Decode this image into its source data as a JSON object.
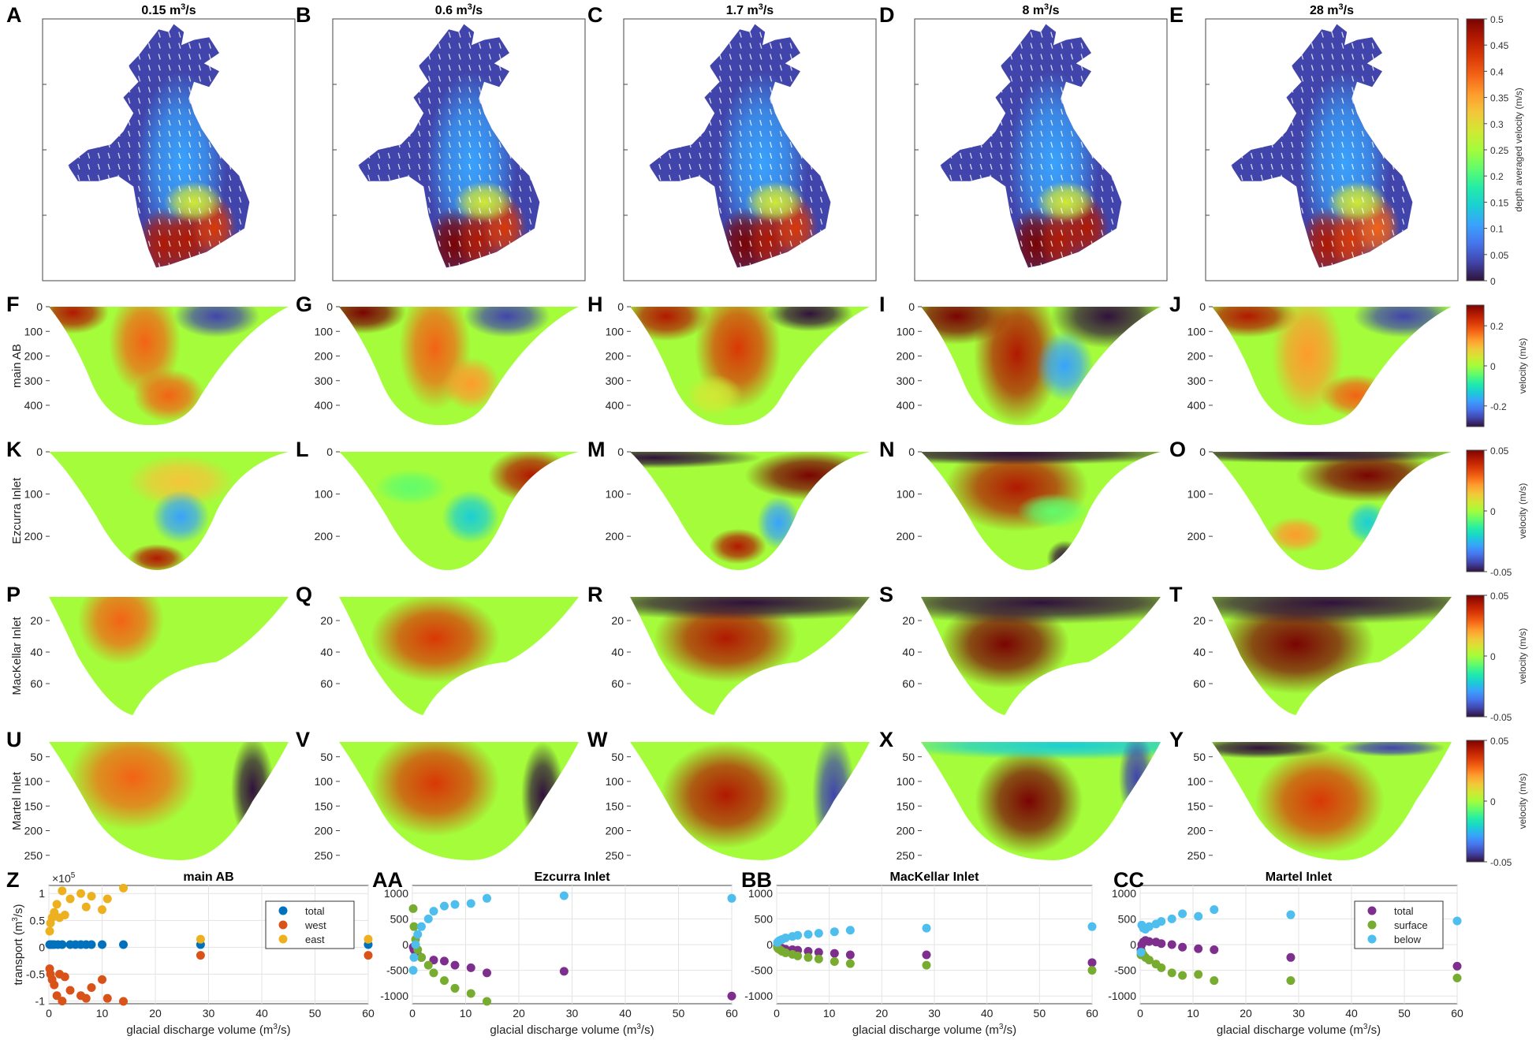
{
  "palette": {
    "jet": [
      "#30123b",
      "#4145ab",
      "#4675ed",
      "#39a2fc",
      "#1bcfd4",
      "#24eca6",
      "#61fc6c",
      "#a4fc3b",
      "#d1e834",
      "#f3c63a",
      "#fe9b2d",
      "#f36315",
      "#d93806",
      "#b11901",
      "#7a0403"
    ],
    "total_blue": "#0072bd",
    "west_red": "#d95319",
    "east_yellow": "#edb120",
    "total_purple": "#7e2f8e",
    "surface_green": "#77ac30",
    "below_cyan": "#4dbeee"
  },
  "discharge_headers": [
    {
      "value": "0.15",
      "unit": " m",
      "sup": "3",
      "tail": "/s"
    },
    {
      "value": "0.6",
      "unit": " m",
      "sup": "3",
      "tail": "/s"
    },
    {
      "value": "1.7",
      "unit": " m",
      "sup": "3",
      "tail": "/s"
    },
    {
      "value": "8",
      "unit": " m",
      "sup": "3",
      "tail": "/s"
    },
    {
      "value": "28",
      "unit": " m",
      "sup": "3",
      "tail": "/s"
    }
  ],
  "panel_letters": [
    [
      "A",
      "B",
      "C",
      "D",
      "E"
    ],
    [
      "F",
      "G",
      "H",
      "I",
      "J"
    ],
    [
      "K",
      "L",
      "M",
      "N",
      "O"
    ],
    [
      "P",
      "Q",
      "R",
      "S",
      "T"
    ],
    [
      "U",
      "V",
      "W",
      "X",
      "Y"
    ]
  ],
  "maps_row": {
    "colorbar": {
      "label": "depth averaged velocity (m/s)",
      "ticks": [
        "0.5",
        "0.45",
        "0.4",
        "0.35",
        "0.3",
        "0.25",
        "0.2",
        "0.15",
        "0.1",
        "0.05",
        "0"
      ]
    }
  },
  "section_rows": [
    {
      "name": "main AB",
      "depth_ticks": [
        "0",
        "100",
        "200",
        "300",
        "400"
      ],
      "depth_range": [
        0,
        480
      ],
      "colorbar": {
        "label": "velocity (m/s)",
        "ticks": [
          "0.2",
          "0",
          "-0.2"
        ],
        "range": [
          -0.3,
          0.3
        ]
      }
    },
    {
      "name": "Ezcurra Inlet",
      "depth_ticks": [
        "0",
        "100",
        "200"
      ],
      "depth_range": [
        0,
        280
      ],
      "colorbar": {
        "label": "velocity (m/s)",
        "ticks": [
          "0.05",
          "0",
          "-0.05"
        ],
        "range": [
          -0.05,
          0.05
        ]
      }
    },
    {
      "name": "MacKellar Inlet",
      "depth_ticks": [
        "20",
        "40",
        "60"
      ],
      "depth_range": [
        5,
        80
      ],
      "colorbar": {
        "label": "velocity (m/s)",
        "ticks": [
          "0.05",
          "0",
          "-0.05"
        ],
        "range": [
          -0.05,
          0.05
        ]
      }
    },
    {
      "name": "Martel Inlet",
      "depth_ticks": [
        "50",
        "100",
        "150",
        "200",
        "250"
      ],
      "depth_range": [
        20,
        260
      ],
      "colorbar": {
        "label": "velocity (m/s)",
        "ticks": [
          "0.05",
          "0",
          "-0.05"
        ],
        "range": [
          -0.05,
          0.05
        ]
      }
    }
  ],
  "transport_axes": {
    "xlabel": "glacial discharge volume (m",
    "xlabel_sup": "3",
    "xlabel_tail": "/s)",
    "ylabel": "transport (m",
    "ylabel_sup": "3",
    "ylabel_tail": "/s)",
    "x_ticks": [
      "0",
      "10",
      "20",
      "30",
      "40",
      "50",
      "60"
    ]
  },
  "chart_data": [
    {
      "type": "scatter",
      "letter": "Z",
      "title": "main AB",
      "xlabel": "glacial discharge volume (m3/s)",
      "ylabel": "transport (m3/s)",
      "multiplier": "×10",
      "multiplier_exp": "5",
      "xlim": [
        0,
        60
      ],
      "ylim": [
        -1.05,
        1.15
      ],
      "y_ticks": [
        "1",
        "0.5",
        "0",
        "-0.5",
        "-1"
      ],
      "y_tick_values": [
        1,
        0.5,
        0,
        -0.5,
        -1
      ],
      "legend": [
        "total",
        "west",
        "east"
      ],
      "legend_position": "top-right",
      "series": [
        {
          "name": "total",
          "color": "#0072bd",
          "points": [
            [
              0.15,
              0.05
            ],
            [
              0.3,
              0.05
            ],
            [
              0.6,
              0.05
            ],
            [
              1,
              0.05
            ],
            [
              1.7,
              0.05
            ],
            [
              2.5,
              0.05
            ],
            [
              4,
              0.05
            ],
            [
              5,
              0.05
            ],
            [
              6,
              0.05
            ],
            [
              7,
              0.05
            ],
            [
              8,
              0.05
            ],
            [
              10,
              0.05
            ],
            [
              14,
              0.05
            ],
            [
              28.5,
              0.05
            ],
            [
              60,
              0.05
            ]
          ]
        },
        {
          "name": "west",
          "color": "#d95319",
          "points": [
            [
              0.15,
              -0.4
            ],
            [
              0.3,
              -0.5
            ],
            [
              0.6,
              -0.6
            ],
            [
              1,
              -0.7
            ],
            [
              1.5,
              -0.9
            ],
            [
              2,
              -0.5
            ],
            [
              2.5,
              -1.0
            ],
            [
              3,
              -0.55
            ],
            [
              4,
              -0.8
            ],
            [
              6,
              -0.9
            ],
            [
              7,
              -0.95
            ],
            [
              8,
              -0.75
            ],
            [
              10,
              -0.6
            ],
            [
              11,
              -0.95
            ],
            [
              14,
              -1.05
            ],
            [
              28.5,
              -0.15
            ],
            [
              60,
              -0.15
            ]
          ]
        },
        {
          "name": "east",
          "color": "#edb120",
          "points": [
            [
              0.15,
              0.3
            ],
            [
              0.3,
              0.45
            ],
            [
              0.6,
              0.55
            ],
            [
              1,
              0.65
            ],
            [
              1.5,
              0.8
            ],
            [
              2,
              0.55
            ],
            [
              2.5,
              1.05
            ],
            [
              3,
              0.6
            ],
            [
              4,
              0.9
            ],
            [
              6,
              1.0
            ],
            [
              7,
              0.75
            ],
            [
              8,
              0.95
            ],
            [
              10,
              0.7
            ],
            [
              11,
              0.9
            ],
            [
              14,
              1.1
            ],
            [
              28.5,
              0.15
            ],
            [
              60,
              0.15
            ]
          ]
        }
      ]
    },
    {
      "type": "scatter",
      "letter": "AA",
      "title": "Ezcurra Inlet",
      "xlabel": "glacial discharge volume (m3/s)",
      "xlim": [
        0,
        60
      ],
      "ylim": [
        -1150,
        1150
      ],
      "y_ticks": [
        "1000",
        "500",
        "0",
        "-500",
        "-1000"
      ],
      "y_tick_values": [
        1000,
        500,
        0,
        -500,
        -1000
      ],
      "series": [
        {
          "name": "total",
          "color": "#7e2f8e",
          "points": [
            [
              0.15,
              -50
            ],
            [
              0.3,
              -100
            ],
            [
              0.6,
              -150
            ],
            [
              1,
              -200
            ],
            [
              1.7,
              -250
            ],
            [
              4,
              -300
            ],
            [
              6,
              -320
            ],
            [
              8,
              -400
            ],
            [
              11,
              -450
            ],
            [
              14,
              -550
            ],
            [
              28.5,
              -520
            ],
            [
              60,
              -1000
            ]
          ]
        },
        {
          "name": "surface",
          "color": "#77ac30",
          "points": [
            [
              0.15,
              700
            ],
            [
              0.3,
              350
            ],
            [
              0.6,
              100
            ],
            [
              1,
              -100
            ],
            [
              1.7,
              -250
            ],
            [
              3,
              -400
            ],
            [
              4,
              -550
            ],
            [
              6,
              -700
            ],
            [
              8,
              -850
            ],
            [
              11,
              -950
            ],
            [
              14,
              -1180
            ]
          ]
        },
        {
          "name": "below",
          "color": "#4dbeee",
          "points": [
            [
              0.15,
              -500
            ],
            [
              0.3,
              -250
            ],
            [
              0.6,
              0
            ],
            [
              1,
              200
            ],
            [
              1.7,
              350
            ],
            [
              3,
              500
            ],
            [
              4,
              650
            ],
            [
              6,
              750
            ],
            [
              8,
              780
            ],
            [
              11,
              800
            ],
            [
              14,
              900
            ],
            [
              28.5,
              950
            ],
            [
              60,
              900
            ]
          ]
        }
      ]
    },
    {
      "type": "scatter",
      "letter": "BB",
      "title": "MacKellar Inlet",
      "xlabel": "glacial discharge volume (m3/s)",
      "xlim": [
        0,
        60
      ],
      "ylim": [
        -1150,
        1150
      ],
      "y_ticks": [
        "1000",
        "500",
        "0",
        "-500",
        "-1000"
      ],
      "y_tick_values": [
        1000,
        500,
        0,
        -500,
        -1000
      ],
      "series": [
        {
          "name": "total",
          "color": "#7e2f8e",
          "points": [
            [
              0.15,
              -30
            ],
            [
              0.3,
              -50
            ],
            [
              0.6,
              -60
            ],
            [
              1,
              -70
            ],
            [
              1.7,
              -90
            ],
            [
              3,
              -100
            ],
            [
              4,
              -110
            ],
            [
              6,
              -130
            ],
            [
              8,
              -150
            ],
            [
              11,
              -170
            ],
            [
              14,
              -200
            ],
            [
              28.5,
              -200
            ],
            [
              60,
              -350
            ]
          ]
        },
        {
          "name": "surface",
          "color": "#77ac30",
          "points": [
            [
              0.15,
              -60
            ],
            [
              0.3,
              -80
            ],
            [
              0.6,
              -100
            ],
            [
              1,
              -130
            ],
            [
              1.7,
              -160
            ],
            [
              3,
              -190
            ],
            [
              4,
              -220
            ],
            [
              6,
              -250
            ],
            [
              8,
              -280
            ],
            [
              11,
              -330
            ],
            [
              14,
              -370
            ],
            [
              28.5,
              -400
            ],
            [
              60,
              -500
            ]
          ]
        },
        {
          "name": "below",
          "color": "#4dbeee",
          "points": [
            [
              0.15,
              40
            ],
            [
              0.3,
              60
            ],
            [
              0.6,
              80
            ],
            [
              1,
              100
            ],
            [
              1.7,
              130
            ],
            [
              3,
              160
            ],
            [
              4,
              180
            ],
            [
              6,
              200
            ],
            [
              8,
              220
            ],
            [
              11,
              250
            ],
            [
              14,
              280
            ],
            [
              28.5,
              320
            ],
            [
              60,
              350
            ]
          ]
        }
      ]
    },
    {
      "type": "scatter",
      "letter": "CC",
      "title": "Martel Inlet",
      "xlabel": "glacial discharge volume (m3/s)",
      "xlim": [
        0,
        60
      ],
      "ylim": [
        -1150,
        1150
      ],
      "y_ticks": [
        "1000",
        "500",
        "0",
        "-500",
        "-1000"
      ],
      "y_tick_values": [
        1000,
        500,
        0,
        -500,
        -1000
      ],
      "legend": [
        "total",
        "surface",
        "below"
      ],
      "legend_position": "top-right",
      "series": [
        {
          "name": "total",
          "color": "#7e2f8e",
          "points": [
            [
              0.15,
              -100
            ],
            [
              0.3,
              0
            ],
            [
              0.6,
              50
            ],
            [
              1,
              80
            ],
            [
              1.7,
              60
            ],
            [
              3,
              50
            ],
            [
              4,
              20
            ],
            [
              6,
              0
            ],
            [
              8,
              -50
            ],
            [
              11,
              -80
            ],
            [
              14,
              -100
            ],
            [
              28.5,
              -250
            ],
            [
              60,
              -420
            ]
          ]
        },
        {
          "name": "surface",
          "color": "#77ac30",
          "points": [
            [
              0.15,
              -200
            ],
            [
              0.3,
              -150
            ],
            [
              0.6,
              -200
            ],
            [
              1,
              -250
            ],
            [
              1.7,
              -300
            ],
            [
              3,
              -380
            ],
            [
              4,
              -450
            ],
            [
              6,
              -550
            ],
            [
              8,
              -600
            ],
            [
              11,
              -580
            ],
            [
              14,
              -700
            ],
            [
              28.5,
              -700
            ],
            [
              60,
              -650
            ]
          ]
        },
        {
          "name": "below",
          "color": "#4dbeee",
          "points": [
            [
              0.15,
              -150
            ],
            [
              0.3,
              380
            ],
            [
              0.6,
              320
            ],
            [
              1,
              300
            ],
            [
              1.7,
              350
            ],
            [
              3,
              400
            ],
            [
              4,
              450
            ],
            [
              6,
              500
            ],
            [
              8,
              600
            ],
            [
              11,
              550
            ],
            [
              14,
              680
            ],
            [
              28.5,
              580
            ],
            [
              60,
              460
            ]
          ]
        }
      ]
    }
  ]
}
